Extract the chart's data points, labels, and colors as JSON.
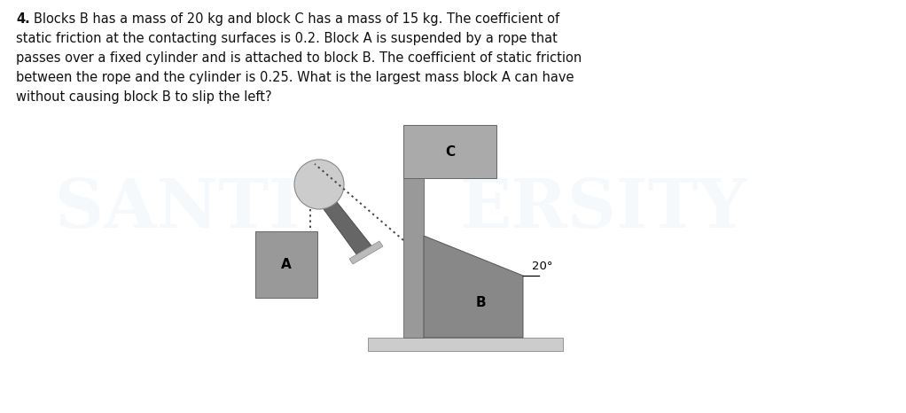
{
  "title_text_line1": "4. Blocks B has a mass of 20 kg and block C has a mass of 15 kg. The coefficient of",
  "title_text_line2": "static friction at the contacting surfaces is 0.2. Block A is suspended by a rope that",
  "title_text_line3": "passes over a fixed cylinder and is attached to block B. The coefficient of static friction",
  "title_text_line4": "between the rope and the cylinder is 0.25. What is the largest mass block A can have",
  "title_text_line5": "without causing block B to slip the left?",
  "bg_color": "#ffffff",
  "text_color": "#111111",
  "block_B_color": "#888888",
  "block_C_color": "#aaaaaa",
  "block_A_color": "#999999",
  "wall_color": "#999999",
  "floor_color": "#cccccc",
  "cylinder_light": "#cccccc",
  "cylinder_dark": "#777777",
  "mount_color": "#666666",
  "mount_base_color": "#bbbbbb",
  "rope_color": "#444444",
  "angle_label": "20°",
  "label_A": "A",
  "label_B": "B",
  "label_C": "C",
  "num4_bold": "4."
}
